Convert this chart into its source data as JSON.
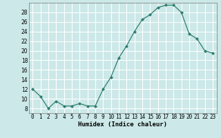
{
  "x": [
    0,
    1,
    2,
    3,
    4,
    5,
    6,
    7,
    8,
    9,
    10,
    11,
    12,
    13,
    14,
    15,
    16,
    17,
    18,
    19,
    20,
    21,
    22,
    23
  ],
  "y": [
    12,
    10.5,
    8,
    9.5,
    8.5,
    8.5,
    9,
    8.5,
    8.5,
    12,
    14.5,
    18.5,
    21,
    24,
    26.5,
    27.5,
    29,
    29.5,
    29.5,
    28,
    23.5,
    22.5,
    20,
    19.5
  ],
  "line_color": "#2e7d6e",
  "marker": "D",
  "marker_size": 2.0,
  "bg_color": "#cce8e8",
  "grid_color": "#ffffff",
  "xlabel": "Humidex (Indice chaleur)",
  "ylim": [
    7,
    30
  ],
  "xlim": [
    -0.5,
    23.5
  ],
  "yticks": [
    8,
    10,
    12,
    14,
    16,
    18,
    20,
    22,
    24,
    26,
    28
  ],
  "xtick_labels": [
    "0",
    "1",
    "2",
    "3",
    "4",
    "5",
    "6",
    "7",
    "8",
    "9",
    "10",
    "11",
    "12",
    "13",
    "14",
    "15",
    "16",
    "17",
    "18",
    "19",
    "20",
    "21",
    "22",
    "23"
  ],
  "font_size_xlabel": 6.5,
  "font_size_ticks": 5.5,
  "linewidth": 0.9
}
